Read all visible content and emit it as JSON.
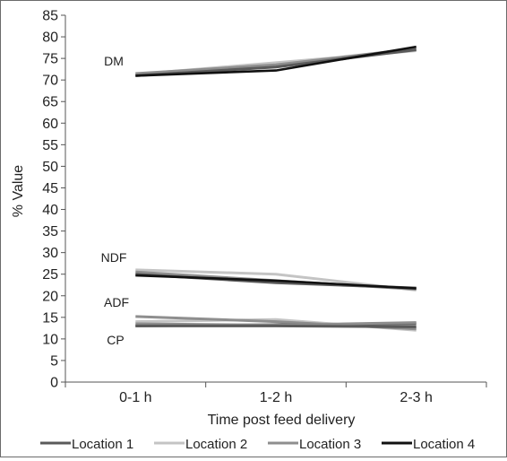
{
  "chart_data": {
    "type": "line",
    "xlabel": "Time post feed delivery",
    "ylabel": "% Value",
    "categories": [
      "0-1 h",
      "1-2 h",
      "2-3 h"
    ],
    "ylim": [
      0,
      85
    ],
    "yticks": [
      0,
      5,
      10,
      15,
      20,
      25,
      30,
      35,
      40,
      45,
      50,
      55,
      60,
      65,
      70,
      75,
      80,
      85
    ],
    "grid": false,
    "legend_position": "bottom",
    "legend": [
      {
        "name": "Location 1",
        "color": "#5a5a5a"
      },
      {
        "name": "Location 2",
        "color": "#c4c4c4"
      },
      {
        "name": "Location 3",
        "color": "#8e8e8e"
      },
      {
        "name": "Location 4",
        "color": "#111111"
      }
    ],
    "groups": [
      {
        "label": "DM",
        "series": [
          {
            "name": "Location 1",
            "values": [
              71.0,
              73.0,
              77.0
            ]
          },
          {
            "name": "Location 2",
            "values": [
              71.3,
              74.0,
              76.8
            ]
          },
          {
            "name": "Location 3",
            "values": [
              71.5,
              73.5,
              77.3
            ]
          },
          {
            "name": "Location 4",
            "values": [
              71.0,
              72.2,
              77.7
            ]
          }
        ]
      },
      {
        "label": "NDF",
        "series": [
          {
            "name": "Location 1",
            "values": [
              25.0,
              23.0,
              21.8
            ]
          },
          {
            "name": "Location 2",
            "values": [
              26.0,
              25.0,
              21.3
            ]
          },
          {
            "name": "Location 3",
            "values": [
              25.5,
              23.5,
              21.5
            ]
          },
          {
            "name": "Location 4",
            "values": [
              24.7,
              23.5,
              21.7
            ]
          }
        ]
      },
      {
        "label": "ADF",
        "series": [
          {
            "name": "Location 1",
            "values": [
              13.0,
              13.3,
              13.5
            ]
          },
          {
            "name": "Location 2",
            "values": [
              14.0,
              14.5,
              12.0
            ]
          },
          {
            "name": "Location 3",
            "values": [
              15.2,
              14.0,
              12.3
            ]
          }
        ]
      },
      {
        "label": "CP",
        "series": [
          {
            "name": "Location 1",
            "values": [
              13.0,
              13.0,
              12.8
            ]
          },
          {
            "name": "Location 3",
            "values": [
              13.5,
              13.2,
              13.8
            ]
          }
        ]
      }
    ]
  }
}
